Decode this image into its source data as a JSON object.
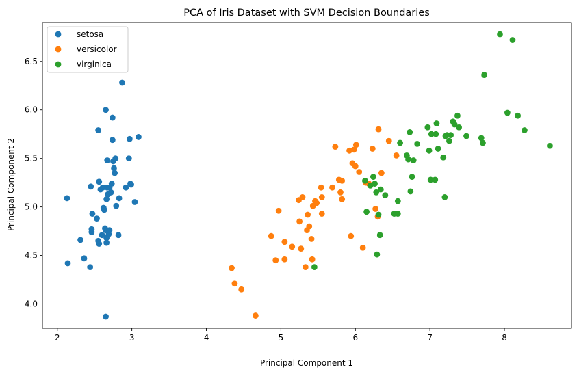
{
  "chart_data": {
    "type": "scatter",
    "title": "PCA of Iris Dataset with SVM Decision Boundaries",
    "xlabel": "Principal Component 1",
    "ylabel": "Principal Component 2",
    "xlim": [
      1.8,
      8.9
    ],
    "ylim": [
      3.75,
      6.9
    ],
    "xticks": [
      2,
      3,
      4,
      5,
      6,
      7,
      8
    ],
    "yticks": [
      4.0,
      4.5,
      5.0,
      5.5,
      6.0,
      6.5
    ],
    "grid": false,
    "legend_position": "top-left",
    "series": [
      {
        "name": "setosa",
        "color": "#1f77b4",
        "points": [
          [
            2.13,
            5.09
          ],
          [
            2.14,
            4.42
          ],
          [
            2.31,
            4.66
          ],
          [
            2.36,
            4.47
          ],
          [
            2.44,
            4.38
          ],
          [
            2.45,
            5.21
          ],
          [
            2.46,
            4.77
          ],
          [
            2.46,
            4.74
          ],
          [
            2.47,
            4.93
          ],
          [
            2.53,
            4.88
          ],
          [
            2.55,
            5.79
          ],
          [
            2.56,
            5.26
          ],
          [
            2.55,
            4.65
          ],
          [
            2.56,
            4.62
          ],
          [
            2.58,
            5.18
          ],
          [
            2.6,
            4.71
          ],
          [
            2.61,
            5.2
          ],
          [
            2.62,
            4.99
          ],
          [
            2.63,
            4.97
          ],
          [
            2.64,
            4.78
          ],
          [
            2.65,
            4.76
          ],
          [
            2.65,
            3.87
          ],
          [
            2.65,
            6.0
          ],
          [
            2.66,
            4.63
          ],
          [
            2.66,
            4.68
          ],
          [
            2.66,
            5.08
          ],
          [
            2.67,
            5.2
          ],
          [
            2.67,
            5.48
          ],
          [
            2.68,
            5.13
          ],
          [
            2.69,
            4.72
          ],
          [
            2.7,
            4.76
          ],
          [
            2.7,
            5.2
          ],
          [
            2.72,
            5.15
          ],
          [
            2.73,
            5.24
          ],
          [
            2.74,
            5.69
          ],
          [
            2.74,
            5.92
          ],
          [
            2.75,
            5.47
          ],
          [
            2.76,
            5.4
          ],
          [
            2.77,
            5.35
          ],
          [
            2.78,
            5.5
          ],
          [
            2.79,
            5.01
          ],
          [
            2.82,
            4.71
          ],
          [
            2.83,
            5.09
          ],
          [
            2.87,
            6.28
          ],
          [
            2.92,
            5.2
          ],
          [
            2.96,
            5.5
          ],
          [
            2.97,
            5.7
          ],
          [
            2.99,
            5.23
          ],
          [
            2.98,
            5.24
          ],
          [
            3.04,
            5.05
          ],
          [
            3.09,
            5.72
          ]
        ]
      },
      {
        "name": "versicolor",
        "color": "#ff7f0e",
        "points": [
          [
            4.34,
            4.37
          ],
          [
            4.38,
            4.21
          ],
          [
            4.47,
            4.15
          ],
          [
            4.66,
            3.88
          ],
          [
            4.87,
            4.7
          ],
          [
            4.93,
            4.45
          ],
          [
            4.97,
            4.96
          ],
          [
            5.05,
            4.46
          ],
          [
            5.05,
            4.64
          ],
          [
            5.15,
            4.59
          ],
          [
            5.24,
            5.07
          ],
          [
            5.25,
            4.85
          ],
          [
            5.27,
            4.57
          ],
          [
            5.29,
            5.1
          ],
          [
            5.33,
            4.38
          ],
          [
            5.35,
            4.76
          ],
          [
            5.36,
            4.92
          ],
          [
            5.38,
            4.8
          ],
          [
            5.41,
            4.67
          ],
          [
            5.42,
            4.46
          ],
          [
            5.43,
            5.01
          ],
          [
            5.46,
            5.06
          ],
          [
            5.48,
            5.04
          ],
          [
            5.54,
            5.2
          ],
          [
            5.55,
            5.1
          ],
          [
            5.55,
            4.93
          ],
          [
            5.69,
            5.2
          ],
          [
            5.73,
            5.62
          ],
          [
            5.78,
            5.28
          ],
          [
            5.8,
            5.15
          ],
          [
            5.82,
            5.27
          ],
          [
            5.82,
            5.08
          ],
          [
            5.92,
            5.58
          ],
          [
            5.94,
            4.7
          ],
          [
            5.96,
            5.45
          ],
          [
            5.98,
            5.59
          ],
          [
            6.0,
            5.42
          ],
          [
            6.01,
            5.64
          ],
          [
            6.05,
            5.36
          ],
          [
            6.1,
            4.58
          ],
          [
            6.14,
            5.25
          ],
          [
            6.18,
            5.24
          ],
          [
            6.23,
            5.6
          ],
          [
            6.27,
            4.98
          ],
          [
            6.3,
            4.9
          ],
          [
            6.31,
            5.8
          ],
          [
            6.35,
            5.35
          ],
          [
            6.45,
            5.68
          ],
          [
            6.55,
            5.53
          ]
        ]
      },
      {
        "name": "virginica",
        "color": "#2ca02c",
        "points": [
          [
            5.45,
            4.38
          ],
          [
            6.13,
            5.27
          ],
          [
            6.15,
            4.95
          ],
          [
            6.2,
            5.22
          ],
          [
            6.24,
            5.31
          ],
          [
            6.26,
            5.24
          ],
          [
            6.28,
            5.15
          ],
          [
            6.29,
            4.51
          ],
          [
            6.31,
            4.92
          ],
          [
            6.33,
            4.71
          ],
          [
            6.34,
            5.18
          ],
          [
            6.4,
            5.12
          ],
          [
            6.52,
            4.93
          ],
          [
            6.57,
            4.93
          ],
          [
            6.57,
            5.06
          ],
          [
            6.6,
            5.66
          ],
          [
            6.69,
            5.53
          ],
          [
            6.71,
            5.49
          ],
          [
            6.73,
            5.77
          ],
          [
            6.74,
            5.16
          ],
          [
            6.76,
            5.31
          ],
          [
            6.78,
            5.48
          ],
          [
            6.83,
            5.65
          ],
          [
            6.97,
            5.82
          ],
          [
            6.99,
            5.58
          ],
          [
            7.01,
            5.28
          ],
          [
            7.02,
            5.75
          ],
          [
            7.07,
            5.28
          ],
          [
            7.08,
            5.75
          ],
          [
            7.09,
            5.86
          ],
          [
            7.11,
            5.6
          ],
          [
            7.18,
            5.51
          ],
          [
            7.2,
            5.1
          ],
          [
            7.21,
            5.73
          ],
          [
            7.23,
            5.74
          ],
          [
            7.26,
            5.68
          ],
          [
            7.28,
            5.74
          ],
          [
            7.31,
            5.88
          ],
          [
            7.33,
            5.85
          ],
          [
            7.37,
            5.94
          ],
          [
            7.39,
            5.82
          ],
          [
            7.49,
            5.73
          ],
          [
            7.69,
            5.71
          ],
          [
            7.71,
            5.66
          ],
          [
            7.73,
            6.36
          ],
          [
            7.94,
            6.78
          ],
          [
            8.04,
            5.97
          ],
          [
            8.11,
            6.72
          ],
          [
            8.18,
            5.94
          ],
          [
            8.27,
            5.79
          ],
          [
            8.61,
            5.63
          ]
        ]
      }
    ]
  }
}
